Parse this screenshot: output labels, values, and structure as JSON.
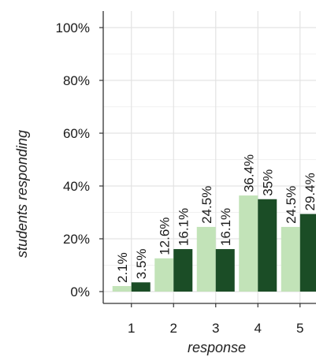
{
  "chart_data": {
    "type": "bar",
    "categories": [
      "1",
      "2",
      "3",
      "4",
      "5"
    ],
    "series": [
      {
        "values": [
          2.1,
          12.6,
          24.5,
          36.4,
          24.5
        ],
        "labels": [
          "2.1%",
          "12.6%",
          "24.5%",
          "36.4%",
          "24.5%"
        ],
        "color": "#c2e3b8"
      },
      {
        "values": [
          3.5,
          16.1,
          16.1,
          35.0,
          29.4
        ],
        "labels": [
          "3.5%",
          "16.1%",
          "16.1%",
          "35%",
          "29.4%"
        ],
        "color": "#1b4d26"
      }
    ],
    "xlabel": "response",
    "ylabel": "students responding",
    "ylim": [
      0,
      100
    ],
    "yticks": [
      0,
      20,
      40,
      60,
      80,
      100
    ],
    "ytick_labels": [
      "0%",
      "20%",
      "40%",
      "60%",
      "80%",
      "100%"
    ],
    "grid": true,
    "legend": "none"
  },
  "colors": {
    "panel_border": "#333333",
    "grid_major": "#e3e3e3",
    "grid_minor": "#f1f1f1"
  }
}
